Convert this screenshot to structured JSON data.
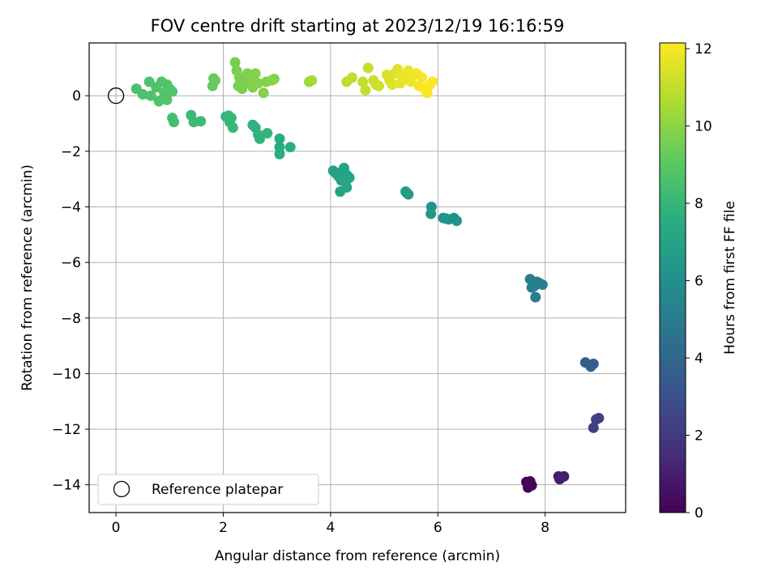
{
  "chart_data": {
    "type": "scatter",
    "title": "FOV centre drift starting at 2023/12/19 16:16:59",
    "xlabel": "Angular distance from reference (arcmin)",
    "ylabel": "Rotation from reference (arcmin)",
    "xlim": [
      -0.5,
      9.5
    ],
    "ylim": [
      -15,
      1.9
    ],
    "xticks": [
      0,
      2,
      4,
      6,
      8
    ],
    "yticks": [
      0,
      -2,
      -4,
      -6,
      -8,
      -10,
      -12,
      -14
    ],
    "grid": true,
    "colormap": "viridis",
    "colorbar": {
      "label": "Hours from first FF file",
      "range": [
        0,
        12.15
      ],
      "ticks": [
        0,
        2,
        4,
        6,
        8,
        10,
        12
      ]
    },
    "legend": {
      "location": "lower-left",
      "entries": [
        "Reference platepar"
      ]
    },
    "reference_point": {
      "x": 0,
      "y": 0
    },
    "points": [
      {
        "x": 7.65,
        "y": -13.9,
        "h": 0.05
      },
      {
        "x": 7.7,
        "y": -13.95,
        "h": 0.1
      },
      {
        "x": 7.68,
        "y": -14.1,
        "h": 0.15
      },
      {
        "x": 7.75,
        "y": -14.02,
        "h": 0.2
      },
      {
        "x": 7.72,
        "y": -13.88,
        "h": 0.25
      },
      {
        "x": 8.25,
        "y": -13.7,
        "h": 0.9
      },
      {
        "x": 8.27,
        "y": -13.8,
        "h": 0.95
      },
      {
        "x": 8.35,
        "y": -13.7,
        "h": 1.0
      },
      {
        "x": 8.3,
        "y": -13.72,
        "h": 1.05
      },
      {
        "x": 8.9,
        "y": -11.95,
        "h": 2.2
      },
      {
        "x": 8.95,
        "y": -11.65,
        "h": 2.3
      },
      {
        "x": 9.0,
        "y": -11.6,
        "h": 2.35
      },
      {
        "x": 8.75,
        "y": -9.6,
        "h": 3.5
      },
      {
        "x": 8.85,
        "y": -9.7,
        "h": 3.6
      },
      {
        "x": 8.9,
        "y": -9.65,
        "h": 3.65
      },
      {
        "x": 8.85,
        "y": -9.75,
        "h": 3.7
      },
      {
        "x": 7.72,
        "y": -6.6,
        "h": 5.0
      },
      {
        "x": 7.75,
        "y": -6.9,
        "h": 5.05
      },
      {
        "x": 7.85,
        "y": -6.7,
        "h": 5.1
      },
      {
        "x": 7.82,
        "y": -7.25,
        "h": 5.15
      },
      {
        "x": 7.9,
        "y": -6.75,
        "h": 5.2
      },
      {
        "x": 7.95,
        "y": -6.8,
        "h": 5.25
      },
      {
        "x": 7.8,
        "y": -6.85,
        "h": 5.3
      },
      {
        "x": 6.1,
        "y": -4.4,
        "h": 6.0
      },
      {
        "x": 6.2,
        "y": -4.45,
        "h": 6.05
      },
      {
        "x": 6.3,
        "y": -4.4,
        "h": 6.1
      },
      {
        "x": 6.35,
        "y": -4.5,
        "h": 6.15
      },
      {
        "x": 6.15,
        "y": -4.42,
        "h": 6.2
      },
      {
        "x": 5.88,
        "y": -4.0,
        "h": 6.3
      },
      {
        "x": 5.87,
        "y": -4.25,
        "h": 6.35
      },
      {
        "x": 5.4,
        "y": -3.45,
        "h": 6.5
      },
      {
        "x": 5.45,
        "y": -3.55,
        "h": 6.55
      },
      {
        "x": 5.42,
        "y": -3.5,
        "h": 6.6
      },
      {
        "x": 4.05,
        "y": -2.7,
        "h": 6.9
      },
      {
        "x": 4.1,
        "y": -2.8,
        "h": 6.92
      },
      {
        "x": 4.15,
        "y": -2.9,
        "h": 6.95
      },
      {
        "x": 4.2,
        "y": -2.75,
        "h": 6.97
      },
      {
        "x": 4.25,
        "y": -2.6,
        "h": 7.0
      },
      {
        "x": 4.3,
        "y": -2.85,
        "h": 7.02
      },
      {
        "x": 4.35,
        "y": -2.95,
        "h": 7.05
      },
      {
        "x": 4.2,
        "y": -3.05,
        "h": 7.08
      },
      {
        "x": 4.3,
        "y": -3.3,
        "h": 7.1
      },
      {
        "x": 4.18,
        "y": -3.45,
        "h": 7.12
      },
      {
        "x": 4.28,
        "y": -3.1,
        "h": 7.15
      },
      {
        "x": 3.05,
        "y": -1.55,
        "h": 7.5
      },
      {
        "x": 3.05,
        "y": -1.85,
        "h": 7.55
      },
      {
        "x": 3.05,
        "y": -2.1,
        "h": 7.6
      },
      {
        "x": 3.25,
        "y": -1.85,
        "h": 7.62
      },
      {
        "x": 2.55,
        "y": -1.05,
        "h": 7.8
      },
      {
        "x": 2.6,
        "y": -1.15,
        "h": 7.82
      },
      {
        "x": 2.65,
        "y": -1.4,
        "h": 7.85
      },
      {
        "x": 2.68,
        "y": -1.55,
        "h": 7.87
      },
      {
        "x": 2.82,
        "y": -1.35,
        "h": 7.9
      },
      {
        "x": 2.05,
        "y": -0.75,
        "h": 8.0
      },
      {
        "x": 2.12,
        "y": -0.95,
        "h": 8.02
      },
      {
        "x": 2.15,
        "y": -0.8,
        "h": 8.04
      },
      {
        "x": 2.18,
        "y": -1.15,
        "h": 8.06
      },
      {
        "x": 2.1,
        "y": -0.72,
        "h": 8.08
      },
      {
        "x": 1.4,
        "y": -0.7,
        "h": 8.2
      },
      {
        "x": 1.45,
        "y": -0.95,
        "h": 8.22
      },
      {
        "x": 1.58,
        "y": -0.92,
        "h": 8.24
      },
      {
        "x": 1.05,
        "y": -0.8,
        "h": 8.4
      },
      {
        "x": 1.08,
        "y": -0.95,
        "h": 8.42
      },
      {
        "x": 0.38,
        "y": 0.25,
        "h": 8.6
      },
      {
        "x": 0.5,
        "y": 0.05,
        "h": 8.62
      },
      {
        "x": 0.62,
        "y": 0.5,
        "h": 8.64
      },
      {
        "x": 0.65,
        "y": 0.0,
        "h": 8.66
      },
      {
        "x": 0.75,
        "y": 0.3,
        "h": 8.68
      },
      {
        "x": 0.8,
        "y": -0.2,
        "h": 8.7
      },
      {
        "x": 0.85,
        "y": 0.5,
        "h": 8.72
      },
      {
        "x": 0.9,
        "y": 0.1,
        "h": 8.74
      },
      {
        "x": 0.95,
        "y": 0.4,
        "h": 8.76
      },
      {
        "x": 1.0,
        "y": 0.25,
        "h": 8.78
      },
      {
        "x": 0.95,
        "y": -0.15,
        "h": 8.8
      },
      {
        "x": 1.05,
        "y": 0.15,
        "h": 8.82
      },
      {
        "x": 1.8,
        "y": 0.35,
        "h": 9.2
      },
      {
        "x": 1.82,
        "y": 0.62,
        "h": 9.22
      },
      {
        "x": 1.85,
        "y": 0.55,
        "h": 9.24
      },
      {
        "x": 2.22,
        "y": 1.2,
        "h": 9.6
      },
      {
        "x": 2.25,
        "y": 0.9,
        "h": 9.62
      },
      {
        "x": 2.3,
        "y": 0.65,
        "h": 9.64
      },
      {
        "x": 2.28,
        "y": 0.35,
        "h": 9.66
      },
      {
        "x": 2.35,
        "y": 0.25,
        "h": 9.68
      },
      {
        "x": 2.4,
        "y": 0.55,
        "h": 9.7
      },
      {
        "x": 2.45,
        "y": 0.8,
        "h": 9.72
      },
      {
        "x": 2.5,
        "y": 0.45,
        "h": 9.74
      },
      {
        "x": 2.55,
        "y": 0.6,
        "h": 9.76
      },
      {
        "x": 2.55,
        "y": 0.3,
        "h": 9.78
      },
      {
        "x": 2.6,
        "y": 0.8,
        "h": 9.8
      },
      {
        "x": 2.65,
        "y": 0.45,
        "h": 9.82
      },
      {
        "x": 2.75,
        "y": 0.1,
        "h": 9.84
      },
      {
        "x": 2.8,
        "y": 0.5,
        "h": 9.86
      },
      {
        "x": 2.9,
        "y": 0.55,
        "h": 9.88
      },
      {
        "x": 2.95,
        "y": 0.6,
        "h": 9.9
      },
      {
        "x": 3.6,
        "y": 0.5,
        "h": 10.4
      },
      {
        "x": 3.65,
        "y": 0.55,
        "h": 10.45
      },
      {
        "x": 4.3,
        "y": 0.5,
        "h": 10.9
      },
      {
        "x": 4.4,
        "y": 0.65,
        "h": 10.95
      },
      {
        "x": 4.6,
        "y": 0.5,
        "h": 11.0
      },
      {
        "x": 4.65,
        "y": 0.2,
        "h": 11.05
      },
      {
        "x": 4.7,
        "y": 1.0,
        "h": 11.1
      },
      {
        "x": 4.8,
        "y": 0.55,
        "h": 11.15
      },
      {
        "x": 4.85,
        "y": 0.4,
        "h": 11.2
      },
      {
        "x": 4.9,
        "y": 0.35,
        "h": 11.25
      },
      {
        "x": 5.05,
        "y": 0.75,
        "h": 11.4
      },
      {
        "x": 5.1,
        "y": 0.55,
        "h": 11.45
      },
      {
        "x": 5.15,
        "y": 0.4,
        "h": 11.5
      },
      {
        "x": 5.2,
        "y": 0.8,
        "h": 11.55
      },
      {
        "x": 5.25,
        "y": 0.95,
        "h": 11.6
      },
      {
        "x": 5.3,
        "y": 0.45,
        "h": 11.65
      },
      {
        "x": 5.35,
        "y": 0.7,
        "h": 11.7
      },
      {
        "x": 5.4,
        "y": 0.6,
        "h": 11.75
      },
      {
        "x": 5.45,
        "y": 0.9,
        "h": 11.8
      },
      {
        "x": 5.5,
        "y": 0.5,
        "h": 11.85
      },
      {
        "x": 5.55,
        "y": 0.75,
        "h": 11.9
      },
      {
        "x": 5.6,
        "y": 0.8,
        "h": 11.95
      },
      {
        "x": 5.65,
        "y": 0.35,
        "h": 12.0
      },
      {
        "x": 5.7,
        "y": 0.65,
        "h": 12.02
      },
      {
        "x": 5.75,
        "y": 0.25,
        "h": 12.05
      },
      {
        "x": 5.8,
        "y": 0.1,
        "h": 12.08
      },
      {
        "x": 5.85,
        "y": 0.4,
        "h": 12.1
      },
      {
        "x": 5.9,
        "y": 0.5,
        "h": 12.12
      }
    ]
  }
}
